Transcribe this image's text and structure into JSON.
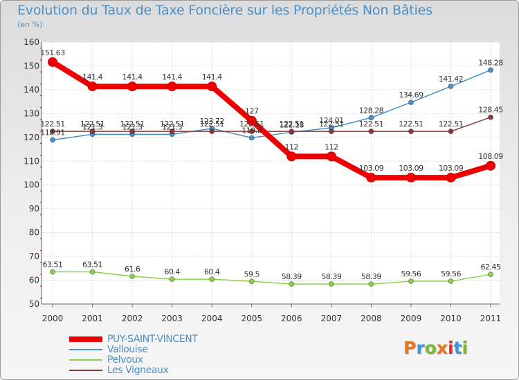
{
  "header": {
    "title": "Evolution du Taux de Taxe Foncière sur les Propriétés Non Bâties",
    "subtitle": "(en %)"
  },
  "logo": {
    "text": "Proxiti",
    "colors": [
      "#e8741e",
      "#3a9ad9",
      "#7cb82f",
      "#e8741e",
      "#e32d2d",
      "#3a9ad9",
      "#7cb82f"
    ]
  },
  "chart_data": {
    "type": "line",
    "title": "Evolution du Taux de Taxe Foncière sur les Propriétés Non Bâties",
    "ylabel": "(en %)",
    "categories": [
      "2000",
      "2001",
      "2002",
      "2003",
      "2004",
      "2005",
      "2006",
      "2007",
      "2008",
      "2009",
      "2010",
      "2011"
    ],
    "ylim": [
      50,
      160
    ],
    "yticks": [
      50,
      60,
      70,
      80,
      90,
      100,
      110,
      120,
      130,
      140,
      150,
      160
    ],
    "grid": true,
    "legend_position": "bottom-left",
    "series": [
      {
        "name": "PUY-SAINT-VINCENT",
        "color": "#ee0000",
        "emphasis": true,
        "values": [
          151.63,
          141.4,
          141.4,
          141.4,
          141.4,
          127,
          112,
          112,
          103.09,
          103.09,
          103.09,
          108.09
        ],
        "labels": [
          "151.63",
          "141.4",
          "141.4",
          "141.4",
          "141.4",
          "127",
          "112",
          "112",
          "103.09",
          "103.09",
          "103.09",
          "108.09"
        ]
      },
      {
        "name": "Vallouise",
        "color": "#4a90c8",
        "values": [
          118.91,
          121.3,
          121.3,
          121.3,
          123.72,
          119.8,
          122.18,
          124.01,
          128.28,
          134.69,
          141.42,
          148.28
        ],
        "labels": [
          "118.91",
          "121.3",
          "121.3",
          "121.3",
          "123.72",
          "119.8",
          "122.18",
          "124.01",
          "128.28",
          "134.69",
          "141.42",
          "148.28"
        ]
      },
      {
        "name": "Pelvoux",
        "color": "#8ed04c",
        "values": [
          63.51,
          63.51,
          61.6,
          60.4,
          60.4,
          59.5,
          58.39,
          58.39,
          58.39,
          59.56,
          59.56,
          62.45
        ],
        "labels": [
          "63.51",
          "63.51",
          "61.6",
          "60.4",
          "60.4",
          "59.5",
          "58.39",
          "58.39",
          "58.39",
          "59.56",
          "59.56",
          "62.45"
        ]
      },
      {
        "name": "Les Vigneaux",
        "color": "#8b3a3a",
        "values": [
          122.51,
          122.51,
          122.51,
          122.51,
          122.51,
          122.51,
          122.51,
          122.51,
          122.51,
          122.51,
          122.51,
          128.45
        ],
        "labels": [
          "122.51",
          "122.51",
          "122.51",
          "122.51",
          "122.51",
          "122.51",
          "122.51",
          "122.51",
          "122.51",
          "122.51",
          "122.51",
          "128.45"
        ]
      }
    ]
  }
}
